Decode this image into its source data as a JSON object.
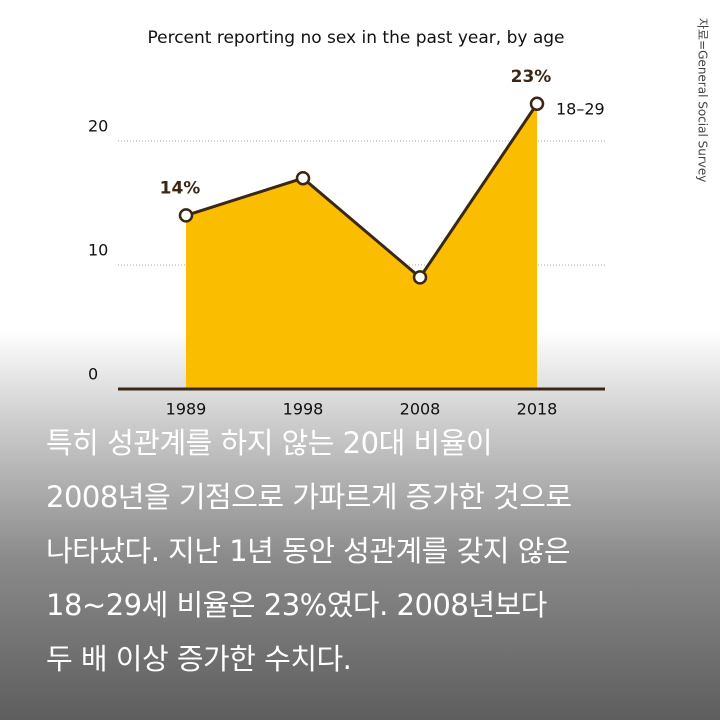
{
  "chart_data": {
    "type": "area",
    "title": "Percent reporting no sex in the past year, by age",
    "categories": [
      "1989",
      "1998",
      "2008",
      "2018"
    ],
    "series": [
      {
        "name": "18–29",
        "color": "#fbbd00",
        "line_color": "#3b2716",
        "values": [
          14,
          17,
          9,
          23
        ],
        "value_labels": [
          "14%",
          null,
          null,
          "23%"
        ]
      }
    ],
    "ylim": [
      0,
      25
    ],
    "yticks": [
      0,
      10,
      20
    ],
    "grid": true,
    "source": "자료=General Social Survey"
  },
  "caption": [
    "특히 성관계를 하지 않는 20대 비율이",
    "2008년을 기점으로 가파르게 증가한 것으로",
    "나타났다. 지난 1년 동안 성관계를 갖지 않은",
    "18~29세 비율은 23%였다. 2008년보다",
    "두 배 이상 증가한 수치다."
  ]
}
